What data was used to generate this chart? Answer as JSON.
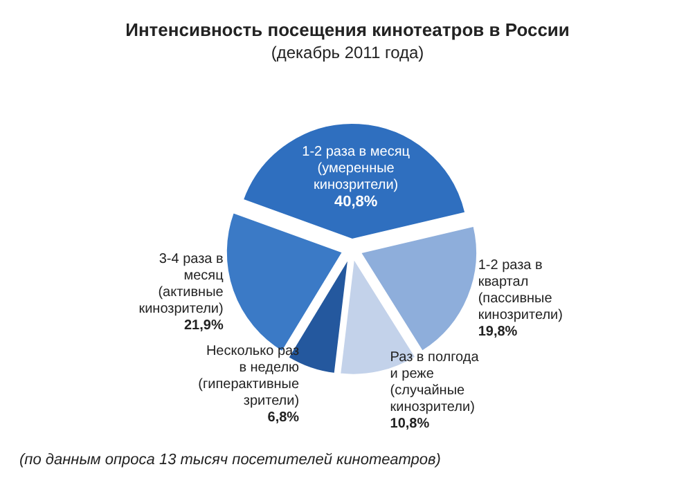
{
  "chart_data": {
    "type": "pie",
    "title": "Интенсивность посещения кинотеатров в России",
    "subtitle": "(декабрь 2011 года)",
    "categories": [
      "1-2 раза в месяц (умеренные кинозрители)",
      "1-2 раза в квартал (пассивные кинозрители)",
      "Раз в полгода и реже (случайные кинозрители)",
      "Несколько раз в неделю (гиперактивные зрители)",
      "3-4 раза в месяц (активные кинозрители)"
    ],
    "values": [
      40.8,
      19.8,
      10.8,
      6.8,
      21.9
    ],
    "value_labels": [
      "40,8%",
      "19,8%",
      "10,8%",
      "6,8%",
      "21,9%"
    ],
    "colors": [
      "#2f6fbf",
      "#8eaedb",
      "#c3d2ea",
      "#24589e",
      "#3b7ac6"
    ],
    "legend": false,
    "annotations": [
      "(по данным опроса 13 тысяч посетителей кинотеатров)"
    ]
  }
}
